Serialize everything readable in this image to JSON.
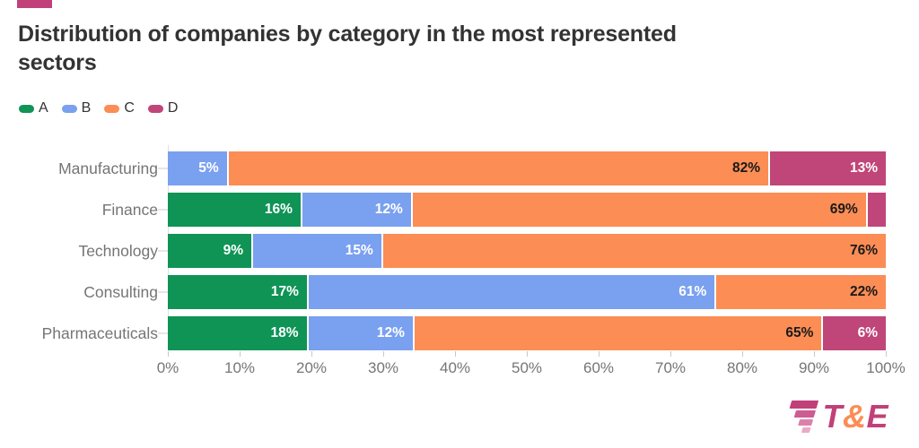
{
  "header": {
    "accent_color": "#C2407A",
    "title": "Distribution of companies by category in the most represented sectors",
    "title_lines": [
      "Distribution of companies by category in the most represented",
      "sectors"
    ]
  },
  "legend": {
    "items": [
      {
        "label": "A",
        "color": "#0F9456"
      },
      {
        "label": "B",
        "color": "#7AA0F0"
      },
      {
        "label": "C",
        "color": "#FB8D55"
      },
      {
        "label": "D",
        "color": "#C04579"
      }
    ]
  },
  "chart_data": {
    "type": "bar",
    "variant": "stacked-horizontal",
    "title": "Distribution of companies by category in the most represented sectors",
    "categories": [
      "Manufacturing",
      "Finance",
      "Technology",
      "Consulting",
      "Pharmaceuticals"
    ],
    "series": [
      {
        "name": "A",
        "color": "#0F9456",
        "label_color": "#ffffff",
        "values": [
          0,
          16,
          9,
          17,
          18
        ],
        "labels": [
          "",
          "16%",
          "9%",
          "17%",
          "18%"
        ]
      },
      {
        "name": "B",
        "color": "#7AA0F0",
        "label_color": "#ffffff",
        "values": [
          5,
          12,
          15,
          61,
          12
        ],
        "labels": [
          "5%",
          "12%",
          "15%",
          "61%",
          "12%"
        ]
      },
      {
        "name": "C",
        "color": "#FB8D55",
        "label_color": "#1a1a1a",
        "values": [
          82,
          69,
          76,
          22,
          65
        ],
        "labels": [
          "82%",
          "69%",
          "76%",
          "22%",
          "65%"
        ]
      },
      {
        "name": "D",
        "color": "#C04579",
        "label_color": "#ffffff",
        "values": [
          13,
          3,
          0,
          0,
          6
        ],
        "labels": [
          "13%",
          "",
          "",
          "",
          "6%"
        ]
      }
    ],
    "xlim": [
      0,
      100
    ],
    "x_ticks": [
      "0%",
      "10%",
      "20%",
      "30%",
      "40%",
      "50%",
      "60%",
      "70%",
      "80%",
      "90%",
      "100%"
    ],
    "unit": "%",
    "legend_position": "top",
    "grid": false
  },
  "logo": {
    "t": "T",
    "amp": "&",
    "e": "E",
    "t_color": "#C2407A",
    "amp_color": "#FB8D55",
    "e_color": "#C2407A",
    "stripe_colors": [
      "#C2407A",
      "#CC5C92",
      "#DB80AB",
      "#ECA9C6"
    ]
  }
}
